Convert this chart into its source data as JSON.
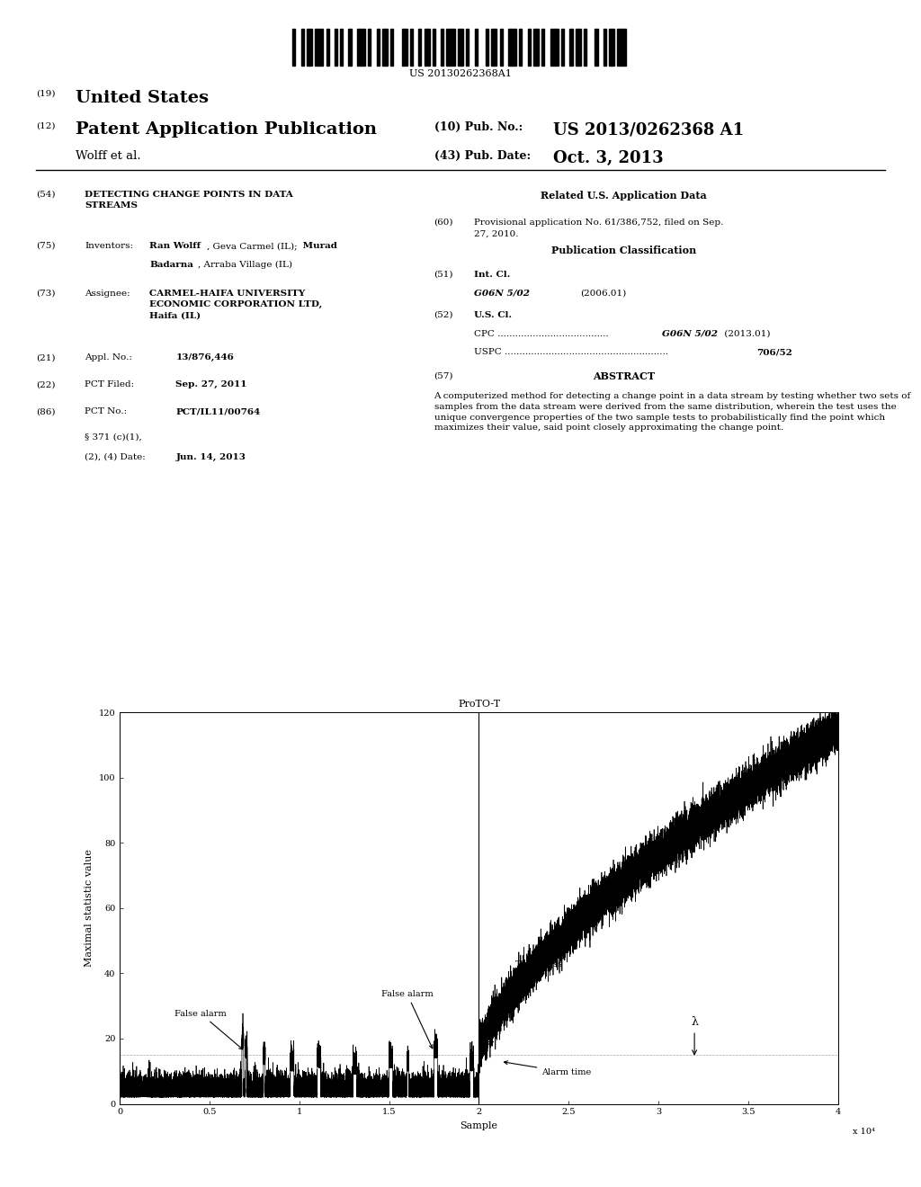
{
  "title": "DETECTING CHANGE POINTS IN DATA STREAMS",
  "patent_number": "US 2013/0262368 A1",
  "pub_date": "Oct. 3, 2013",
  "inventors": "Ran Wolff, Geva Carmel (IL); Murad Badarna, Arraba Village (IL)",
  "assignee": "CARMEL-HAIFA UNIVERSITY ECONOMIC CORPORATION LTD, Haifa (IL)",
  "appl_no": "13/876,446",
  "pct_filed": "Sep. 27, 2011",
  "pct_no": "PCT/IL11/00764",
  "section_date": "Jun. 14, 2013",
  "provisional": "61/386,752, filed on Sep. 27, 2010.",
  "int_cl": "G06N 5/02",
  "int_cl_year": "(2006.01)",
  "cpc": "G06N 5/02 (2013.01)",
  "uspc": "706/52",
  "abstract": "A computerized method for detecting a change point in a data stream by testing whether two sets of samples from the data stream were derived from the same distribution, wherein the test uses the unique convergence properties of the two sample tests to probabilistically find the point which maximizes their value, said point closely approximating the change point.",
  "graph_title": "ProTO-T",
  "graph_xlabel": "Sample",
  "graph_ylabel": "Maximal statistic value",
  "graph_x_scale": "x 10⁴",
  "graph_ylim": [
    0,
    120
  ],
  "graph_xlim": [
    0,
    4
  ],
  "graph_yticks": [
    0,
    20,
    40,
    60,
    80,
    100,
    120
  ],
  "graph_xticks": [
    0,
    0.5,
    1,
    1.5,
    2,
    2.5,
    3,
    3.5,
    4
  ],
  "background_color": "#ffffff",
  "text_color": "#000000",
  "barcode_text": "US 20130262368A1"
}
